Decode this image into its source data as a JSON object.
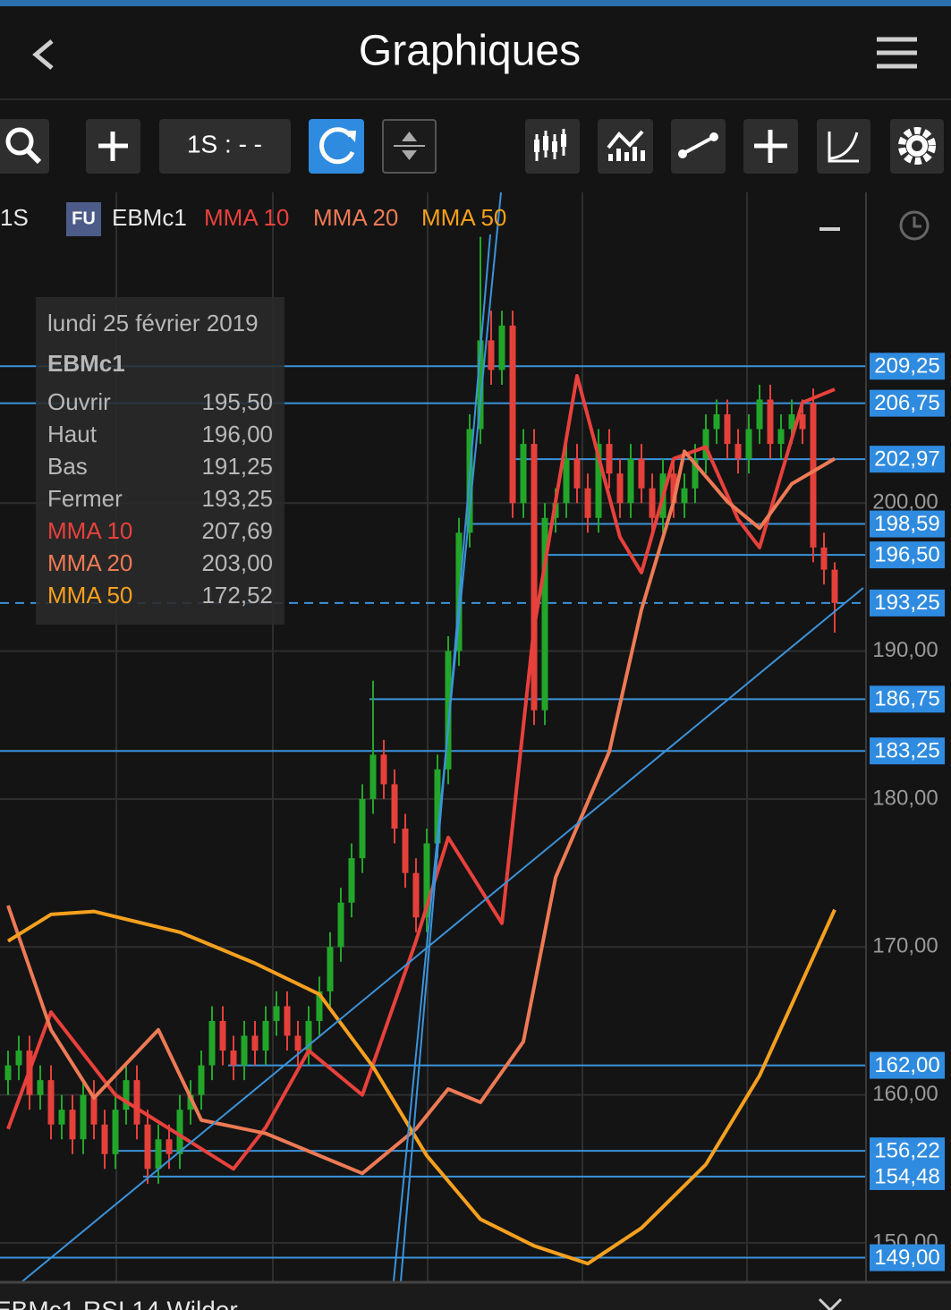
{
  "header": {
    "title": "Graphiques"
  },
  "toolbar": {
    "interval": "1S : - -"
  },
  "legend": {
    "period": "1S",
    "badge": "FU",
    "symbol": "EBMc1"
  },
  "tooltip": {
    "date": "lundi 25 février 2019",
    "symbol": "EBMc1",
    "rows": [
      {
        "label": "Ouvrir",
        "value": "195,50"
      },
      {
        "label": "Haut",
        "value": "196,00"
      },
      {
        "label": "Bas",
        "value": "191,25"
      },
      {
        "label": "Fermer",
        "value": "193,25"
      },
      {
        "label": "MMA 10",
        "value": "207,69"
      },
      {
        "label": "MMA 20",
        "value": "203,00"
      },
      {
        "label": "MMA 50",
        "value": "172,52"
      }
    ]
  },
  "chart_data": {
    "type": "candlestick",
    "up_color": "#22a62a",
    "down_color": "#e5403a",
    "open": [
      161,
      162,
      163,
      160,
      161,
      158,
      159,
      157,
      160,
      158,
      156,
      159,
      161,
      158,
      155,
      157,
      156,
      159,
      160,
      162,
      165,
      163,
      162,
      164,
      163,
      165,
      166,
      164,
      163,
      165,
      167,
      170,
      173,
      176,
      180,
      183,
      181,
      178,
      175,
      172,
      177,
      182,
      190,
      198,
      205,
      211,
      209,
      212,
      200,
      204,
      186,
      199,
      200,
      203,
      201,
      199,
      204,
      202,
      200,
      203,
      201,
      199,
      202,
      200,
      201,
      203,
      205,
      206,
      204,
      203,
      205,
      207,
      204,
      205,
      206,
      206.75,
      197,
      195.5
    ],
    "high": [
      163,
      164,
      164,
      162,
      162,
      160,
      160,
      161,
      161,
      159,
      160,
      162,
      162,
      159,
      158,
      158,
      160,
      161,
      163,
      166,
      166,
      164,
      165,
      165,
      166,
      167,
      167,
      165,
      166,
      168,
      171,
      174,
      177,
      181,
      188,
      184,
      182,
      179,
      176,
      178,
      183,
      191,
      199,
      206,
      218,
      213,
      213,
      213,
      205,
      205,
      200,
      201,
      204,
      204,
      202,
      205,
      205,
      203,
      204,
      204,
      202,
      203,
      203,
      202,
      204,
      206,
      207,
      207,
      205,
      206,
      208,
      208,
      206,
      207,
      207,
      207.75,
      198,
      196
    ],
    "low": [
      160,
      161,
      159,
      159,
      157,
      157,
      156,
      156,
      157,
      155,
      155,
      158,
      157,
      154,
      154,
      155,
      155,
      158,
      159,
      161,
      162,
      161,
      161,
      162,
      162,
      164,
      163,
      162,
      162,
      164,
      166,
      169,
      172,
      175,
      179,
      180,
      177,
      174,
      171,
      171,
      176,
      181,
      189,
      197,
      204,
      208,
      208,
      199,
      199,
      185,
      185,
      198,
      199,
      200,
      198,
      198,
      201,
      199,
      199,
      200,
      198,
      198,
      199,
      199,
      200,
      202,
      204,
      203,
      202,
      202,
      204,
      203,
      203,
      204,
      204,
      196,
      194.5,
      191.25
    ],
    "close": [
      162,
      163,
      160,
      161,
      158,
      159,
      157,
      160,
      158,
      156,
      159,
      161,
      158,
      155,
      157,
      156,
      159,
      160,
      162,
      165,
      163,
      162,
      164,
      163,
      165,
      166,
      164,
      163,
      165,
      167,
      170,
      173,
      176,
      180,
      183,
      181,
      178,
      175,
      172,
      177,
      182,
      190,
      198,
      205,
      211,
      209,
      212,
      200,
      204,
      186,
      199,
      200,
      203,
      201,
      199,
      204,
      202,
      200,
      203,
      201,
      199,
      202,
      200,
      201,
      203,
      205,
      206,
      204,
      203,
      205,
      207,
      204,
      205,
      206,
      205,
      197,
      195.5,
      193.25
    ],
    "series": [
      {
        "name": "MMA 10",
        "color": "#e8413c",
        "x": [
          0,
          4,
          10,
          21,
          24,
          28,
          33,
          38,
          41,
          46,
          49,
          53,
          57,
          59,
          62,
          65,
          68,
          70,
          74,
          77
        ],
        "values": [
          157.7,
          165.6,
          160,
          155,
          157.8,
          163,
          160,
          170.4,
          177.4,
          171.6,
          191.6,
          208.6,
          197.7,
          195.3,
          203,
          203.8,
          198.9,
          197,
          206.8,
          207.69
        ]
      },
      {
        "name": "MMA 20",
        "color": "#ee7a55",
        "x": [
          0,
          4,
          8,
          14,
          18,
          24,
          33,
          38,
          41,
          44,
          48,
          51,
          56,
          59,
          62,
          63,
          67,
          70,
          73,
          77
        ],
        "values": [
          172.8,
          164.4,
          159.8,
          164.4,
          158.3,
          157.4,
          154.7,
          157.7,
          160.4,
          159.5,
          163.6,
          174.7,
          183.2,
          192.8,
          200.1,
          203.5,
          200.1,
          198.3,
          201.3,
          203
        ]
      },
      {
        "name": "MMA 50",
        "color": "#f5a01e",
        "x": [
          0,
          4,
          8,
          16,
          23,
          29,
          34,
          39,
          44,
          49,
          54,
          59,
          65,
          70,
          77
        ],
        "values": [
          170.4,
          172.2,
          172.4,
          171,
          168.9,
          166.8,
          161.9,
          155.9,
          151.6,
          149.8,
          148.6,
          151,
          155.3,
          161.3,
          172.52
        ]
      }
    ],
    "ylim": [
      147.4,
      221
    ],
    "yticks": [
      {
        "value": 150,
        "label": "150,00"
      },
      {
        "value": 160,
        "label": "160,00"
      },
      {
        "value": 170,
        "label": "170,00"
      },
      {
        "value": 180,
        "label": "180,00"
      },
      {
        "value": 190,
        "label": "190,00"
      },
      {
        "value": 200,
        "label": "200,00"
      }
    ],
    "grid": true,
    "price_lines": [
      {
        "value": 209.25,
        "label": "209,25"
      },
      {
        "value": 206.75,
        "label": "206,75"
      },
      {
        "value": 202.97,
        "label": "202,97"
      },
      {
        "value": 198.59,
        "label": "198,59"
      },
      {
        "value": 196.5,
        "label": "196,50"
      },
      {
        "value": 186.75,
        "label": "186,75"
      },
      {
        "value": 183.25,
        "label": "183,25"
      },
      {
        "value": 162,
        "label": "162,00"
      },
      {
        "value": 156.22,
        "label": "156,22"
      },
      {
        "value": 154.48,
        "label": "154,48"
      },
      {
        "value": 149,
        "label": "149,00"
      }
    ],
    "current_price": {
      "value": 193.25,
      "label": "193,25"
    }
  },
  "bottom_panel": {
    "symbol": "EBMc1",
    "indicator": "RSI 14 Wilder"
  }
}
